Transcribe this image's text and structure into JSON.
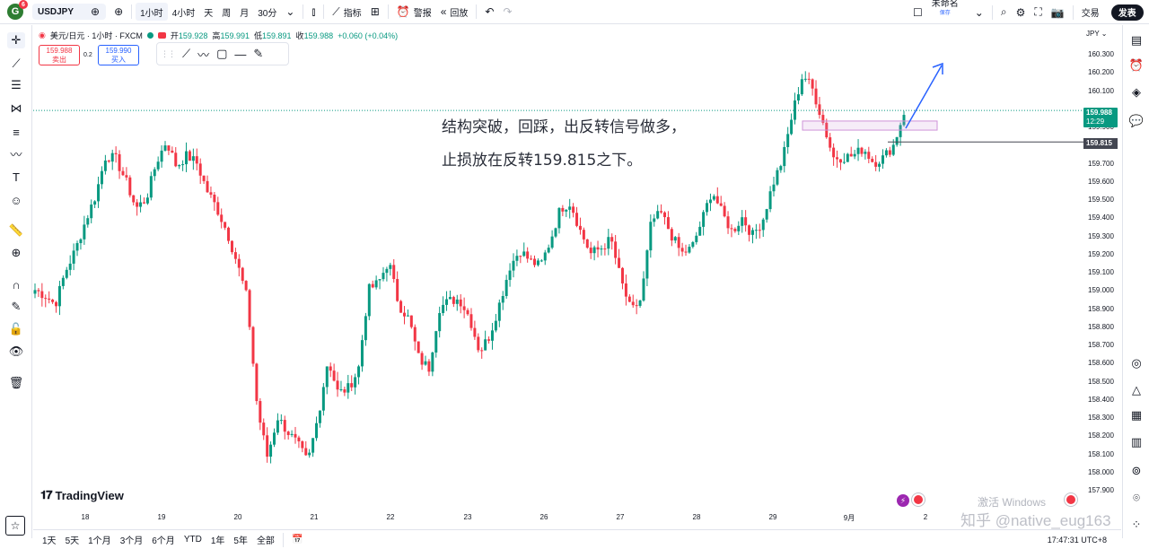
{
  "topbar": {
    "logo_letter": "G",
    "logo_badge": "6",
    "symbol": "USDJPY",
    "timeframes": [
      "1小时",
      "4小时",
      "天",
      "周",
      "月",
      "30分"
    ],
    "active_timeframe": "1小时",
    "indicators_label": "指标",
    "alert_label": "警报",
    "replay_label": "回放",
    "layout_name": "未命名",
    "layout_save": "保存",
    "trade_label": "交易",
    "publish_label": "发表"
  },
  "legend": {
    "title": "美元/日元 · 1小时 · FXCM",
    "open_label": "开",
    "open": "159.928",
    "high_label": "高",
    "high": "159.991",
    "low_label": "低",
    "low": "159.891",
    "close_label": "收",
    "close": "159.988",
    "change": "+0.060 (+0.04%)"
  },
  "trade": {
    "sell_price": "159.988",
    "sell_label": "卖出",
    "spread": "0.2",
    "buy_price": "159.990",
    "buy_label": "买入"
  },
  "annotation": {
    "line1": "结构突破，回踩，出反转信号做多，",
    "line2": "止损放在反转159.815之下。"
  },
  "price_axis": {
    "currency": "JPY",
    "ticks": [
      "160.300",
      "160.200",
      "160.100",
      "159.900",
      "159.800",
      "159.700",
      "159.600",
      "159.500",
      "159.400",
      "159.300",
      "159.200",
      "159.100",
      "159.000",
      "158.900",
      "158.800",
      "158.700",
      "158.600",
      "158.500",
      "158.400",
      "158.300",
      "158.200",
      "158.100",
      "158.000",
      "157.900"
    ],
    "current_price": "159.988",
    "countdown": "12:29",
    "stop_price": "159.815"
  },
  "time_axis": {
    "ticks": [
      "18",
      "19",
      "20",
      "21",
      "22",
      "23",
      "26",
      "27",
      "28",
      "29",
      "9月",
      "2"
    ]
  },
  "bottombar": {
    "ranges": [
      "1天",
      "5天",
      "1个月",
      "3个月",
      "6个月",
      "YTD",
      "1年",
      "5年",
      "全部"
    ],
    "clock": "17:47:31 UTC+8"
  },
  "branding": {
    "logo_text": "TradingView",
    "watermark": "激活 Windows",
    "handle": "知乎 @native_eug163"
  },
  "colors": {
    "up": "#089981",
    "down": "#f23645",
    "accent": "#2962ff",
    "box": "#ce93d8"
  },
  "chart_data": {
    "type": "candlestick",
    "symbol": "USDJPY",
    "interval": "1小时",
    "ylim": [
      157.9,
      160.35
    ],
    "x_ticks": [
      "18",
      "19",
      "20",
      "21",
      "22",
      "23",
      "26",
      "27",
      "28",
      "29",
      "9月",
      "2"
    ],
    "key_levels": {
      "current": 159.988,
      "stop_loss": 159.815,
      "zone_low": 159.88,
      "zone_high": 159.93
    },
    "path": [
      159.0,
      158.97,
      158.92,
      159.1,
      159.22,
      159.38,
      159.52,
      159.74,
      159.72,
      159.6,
      159.45,
      159.5,
      159.7,
      159.82,
      159.68,
      159.74,
      159.7,
      159.55,
      159.45,
      159.32,
      159.15,
      158.95,
      158.35,
      158.08,
      158.3,
      158.22,
      158.15,
      158.05,
      158.3,
      158.62,
      158.43,
      158.46,
      158.56,
      159.0,
      159.04,
      159.16,
      158.92,
      158.84,
      158.62,
      158.57,
      158.9,
      158.94,
      158.95,
      158.85,
      158.66,
      158.75,
      158.93,
      159.13,
      159.22,
      159.16,
      159.13,
      159.27,
      159.45,
      159.48,
      159.32,
      159.2,
      159.23,
      159.28,
      159.05,
      158.88,
      158.95,
      159.38,
      159.42,
      159.3,
      159.2,
      159.23,
      159.38,
      159.55,
      159.42,
      159.32,
      159.4,
      159.3,
      159.38,
      159.58,
      159.72,
      159.98,
      160.19,
      160.1,
      159.92,
      159.73,
      159.73,
      159.74,
      159.78,
      159.7,
      159.73,
      159.8,
      159.98
    ]
  }
}
